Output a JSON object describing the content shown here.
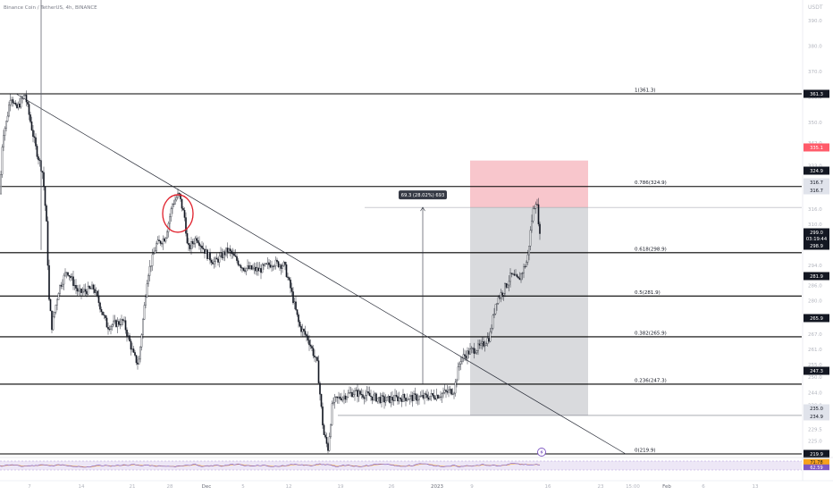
{
  "header": {
    "symbol_text": "Binance Coin / TetherUS, 4h, BINANCE"
  },
  "price_axis": {
    "unit": "USDT",
    "ticks": [
      400.0,
      390.0,
      380.0,
      370.0,
      360.0,
      350.0,
      342.0,
      333.0,
      325.0,
      316.0,
      310.0,
      302.0,
      294.0,
      286.0,
      280.0,
      273.0,
      267.0,
      261.0,
      255.0,
      250.0,
      244.0,
      239.0,
      234.0,
      229.5,
      225.0,
      220.0
    ]
  },
  "time_axis": {
    "labels": [
      "7",
      "14",
      "21",
      "28",
      "Dec",
      "5",
      "12",
      "19",
      "26",
      "2023",
      "9",
      "16",
      "23",
      "15:00",
      "Feb",
      "6",
      "13"
    ]
  },
  "chart_data": {
    "type": "candlestick",
    "symbol": "Binance Coin / TetherUS",
    "interval": "4h",
    "exchange": "BINANCE",
    "ylim": [
      219.0,
      404.0
    ],
    "price_path": [
      [
        0,
        322
      ],
      [
        3,
        345
      ],
      [
        7,
        350
      ],
      [
        12,
        361.3
      ],
      [
        18,
        355
      ],
      [
        28,
        361
      ],
      [
        40,
        340
      ],
      [
        48,
        330
      ],
      [
        52,
        310
      ],
      [
        55,
        280
      ],
      [
        58,
        270
      ],
      [
        66,
        285
      ],
      [
        75,
        292
      ],
      [
        88,
        283
      ],
      [
        105,
        285
      ],
      [
        120,
        270
      ],
      [
        138,
        272
      ],
      [
        150,
        258
      ],
      [
        155,
        255
      ],
      [
        165,
        290
      ],
      [
        175,
        302
      ],
      [
        185,
        305
      ],
      [
        193,
        318
      ],
      [
        200,
        322
      ],
      [
        207,
        312
      ],
      [
        210,
        300
      ],
      [
        220,
        305
      ],
      [
        232,
        298
      ],
      [
        240,
        295
      ],
      [
        255,
        300
      ],
      [
        272,
        293
      ],
      [
        290,
        292
      ],
      [
        305,
        295
      ],
      [
        318,
        294
      ],
      [
        325,
        285
      ],
      [
        335,
        270
      ],
      [
        345,
        265
      ],
      [
        355,
        255
      ],
      [
        362,
        228
      ],
      [
        367,
        222
      ],
      [
        372,
        240
      ],
      [
        380,
        242
      ],
      [
        395,
        244
      ],
      [
        410,
        243
      ],
      [
        430,
        241
      ],
      [
        450,
        242
      ],
      [
        470,
        242
      ],
      [
        490,
        243
      ],
      [
        508,
        245
      ],
      [
        515,
        257
      ],
      [
        525,
        260
      ],
      [
        538,
        262
      ],
      [
        548,
        266
      ],
      [
        555,
        280
      ],
      [
        563,
        284
      ],
      [
        572,
        290
      ],
      [
        580,
        288
      ],
      [
        590,
        296
      ],
      [
        596,
        315
      ],
      [
        600,
        320
      ],
      [
        603,
        310
      ],
      [
        605,
        300
      ]
    ],
    "wick_spikes": [
      {
        "bar": 46,
        "high": 404,
        "low": 300
      },
      {
        "bar": 365,
        "high": 234,
        "low": 219.9
      }
    ],
    "fibonacci": [
      {
        "ratio": "1",
        "label": "1(361.3)",
        "price": 361.3
      },
      {
        "ratio": "0.786",
        "label": "0.786(324.9)",
        "price": 324.9
      },
      {
        "ratio": "0.618",
        "label": "0.618(298.9)",
        "price": 298.9
      },
      {
        "ratio": "0.5",
        "label": "0.5(281.9)",
        "price": 281.9
      },
      {
        "ratio": "0.382",
        "label": "0.382(265.9)",
        "price": 265.9
      },
      {
        "ratio": "0.236",
        "label": "0.236(247.3)",
        "price": 247.3
      },
      {
        "ratio": "0",
        "label": "0(219.9)",
        "price": 219.9
      }
    ],
    "trendline": {
      "from": [
        18,
        361.3
      ],
      "to": [
        700,
        219.9
      ]
    },
    "measure": {
      "label": "69.3 (28.02%) 693",
      "x": 473,
      "from_price": 247.3,
      "to_price": 316.7
    },
    "position": {
      "x_start": 526,
      "x_end": 658,
      "entry": 316.7,
      "target": 335.1,
      "stop": 235.0
    },
    "horizontal_rays": [
      316.7,
      235.0
    ],
    "highlight_circle": {
      "x": 199,
      "price": 315
    },
    "price_labels": [
      {
        "text": "361.3",
        "price": 361.3,
        "style": "dark"
      },
      {
        "text": "335.1",
        "price": 335.1,
        "style": "red"
      },
      {
        "text": "324.9",
        "price": 324.9,
        "style": "dark"
      },
      {
        "text": "316.7",
        "price": 316.7,
        "style": "gray"
      },
      {
        "text": "316.7",
        "price": 316.7,
        "style": "gray"
      },
      {
        "text": "299.0",
        "price": 299.0,
        "style": "dark"
      },
      {
        "text": "03:19:44",
        "price": 299.0,
        "style": "dark"
      },
      {
        "text": "298.9",
        "price": 298.9,
        "style": "dark"
      },
      {
        "text": "281.9",
        "price": 281.9,
        "style": "dark"
      },
      {
        "text": "265.9",
        "price": 265.9,
        "style": "dark"
      },
      {
        "text": "247.3",
        "price": 247.3,
        "style": "dark"
      },
      {
        "text": "235.0",
        "price": 235.0,
        "style": "gray"
      },
      {
        "text": "234.9",
        "price": 234.9,
        "style": "gray"
      },
      {
        "text": "219.9",
        "price": 219.9,
        "style": "dark"
      }
    ],
    "rsi": {
      "labels": [
        {
          "text": "71.78",
          "style": "yellow"
        },
        {
          "text": "62.59",
          "style": "purple"
        }
      ]
    }
  },
  "colors": {
    "background": "#ffffff",
    "candle": "#131722",
    "level_line": "#000000",
    "position_target": "#f8c6cc",
    "position_stop": "#d9dadd",
    "highlight_circle": "#e01e2a",
    "axis_text": "#b2b5be",
    "label_dark": "#131722",
    "label_red": "#ff5b6a",
    "label_gray": "#e0e3eb",
    "rsi_line": "#7e57c2",
    "rsi_secondary": "#f7a21b",
    "rsi_band": "#ede7f6"
  },
  "icons": {
    "flash_marker": "lightning-icon"
  }
}
